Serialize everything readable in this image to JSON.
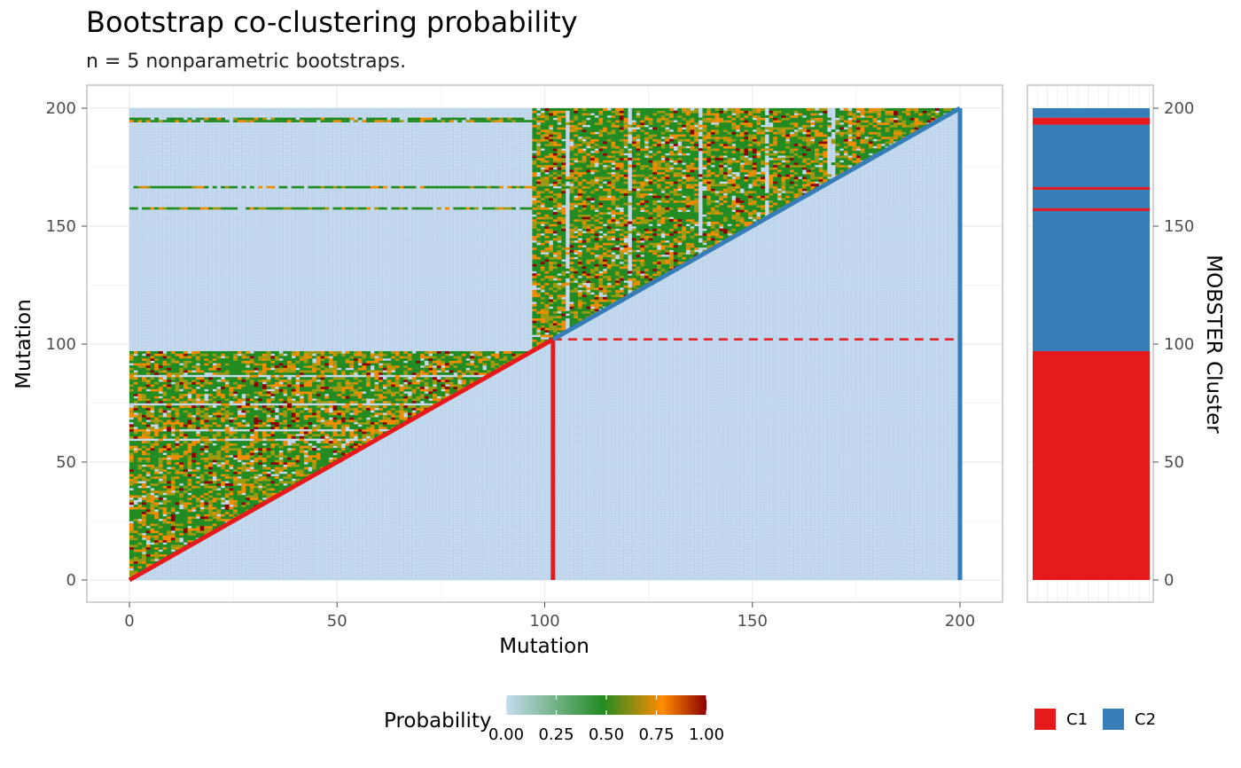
{
  "chart_data": [
    {
      "type": "heatmap",
      "title": "Bootstrap co-clustering probability",
      "subtitle": "n = 5 nonparametric bootstraps.",
      "xlabel": "Mutation",
      "ylabel": "Mutation",
      "xlim": [
        -10,
        210
      ],
      "ylim": [
        -5,
        205
      ],
      "x_ticks": [
        "0",
        "50",
        "100",
        "150",
        "200"
      ],
      "y_ticks": [
        "0",
        "50",
        "100",
        "150",
        "200"
      ],
      "n_mutations": 200,
      "clusters": [
        {
          "name": "C1",
          "start": 0,
          "end": 102,
          "color": "#E41A1C"
        },
        {
          "name": "C2",
          "start": 102,
          "end": 200,
          "color": "#377EB8"
        }
      ],
      "background_cell_color": "#C6DBEF",
      "grid": true,
      "color_scale": {
        "title": "Probability",
        "ticks": [
          "0.00",
          "0.25",
          "0.50",
          "0.75",
          "1.00"
        ],
        "colors": [
          "#C6DBEF",
          "#228B22",
          "#FF8C00",
          "#8B0000"
        ]
      }
    },
    {
      "type": "bar",
      "ylabel": "MOBSTER Cluster",
      "y_ticks": [
        "0",
        "50",
        "100",
        "150",
        "200"
      ],
      "segments": [
        {
          "from": 0,
          "to": 97,
          "cluster": "C1"
        },
        {
          "from": 97,
          "to": 193,
          "cluster": "C2"
        },
        {
          "from": 193,
          "to": 196,
          "cluster": "C1"
        },
        {
          "from": 196,
          "to": 200,
          "cluster": "C2"
        }
      ],
      "markers": [
        {
          "at": 157,
          "cluster": "C1"
        },
        {
          "at": 166,
          "cluster": "C1"
        }
      ],
      "legend": {
        "position": "bottom-right",
        "items": [
          "C1",
          "C2"
        ]
      }
    }
  ]
}
